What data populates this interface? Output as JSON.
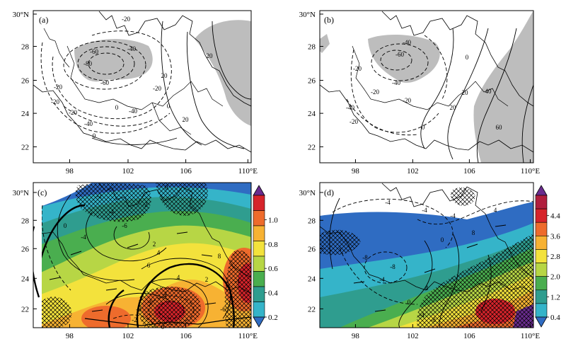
{
  "panels": [
    {
      "id": "a",
      "label": "(a)",
      "x_ticks": [
        "98",
        "102",
        "106",
        "110°E"
      ],
      "y_ticks": [
        "30°N",
        "28",
        "26",
        "24",
        "22"
      ],
      "contour_labels": [
        "-20",
        "-40",
        "-60",
        "-60",
        "-80",
        "-20",
        "0",
        "-20",
        "-20",
        "-40",
        "-40",
        "-20",
        "0",
        "20",
        "20",
        "20",
        "0"
      ]
    },
    {
      "id": "b",
      "label": "(b)",
      "x_ticks": [
        "98",
        "102",
        "106",
        "110°E"
      ],
      "y_ticks": [
        "30°N",
        "28",
        "26",
        "24",
        "22"
      ],
      "contour_labels": [
        "-40",
        "-60",
        "-20",
        "-40",
        "-20",
        "-20",
        "-40",
        "-20",
        "0",
        "0",
        "20",
        "20",
        "40",
        "60"
      ]
    },
    {
      "id": "c",
      "label": "(c)",
      "x_ticks": [
        "98",
        "102",
        "106",
        "110°E"
      ],
      "y_ticks": [
        "30°N",
        "28",
        "26",
        "24",
        "22"
      ],
      "contour_labels": [
        "0",
        "-2",
        "-4",
        "-6",
        "-4",
        "-2",
        "0",
        "2",
        "4",
        "6",
        "8",
        "-4",
        "-6",
        "-8",
        "-6",
        "-4",
        "4",
        "2",
        "0",
        "-2"
      ]
    },
    {
      "id": "d",
      "label": "(d)",
      "x_ticks": [
        "98",
        "102",
        "106",
        "110°E"
      ],
      "y_ticks": [
        "30°N",
        "28",
        "26",
        "24",
        "22"
      ],
      "contour_labels": [
        "-4",
        "-8",
        "-4",
        "-8",
        "-4",
        "0",
        "-4",
        "4",
        "0",
        "-4",
        "-8",
        "8",
        "4"
      ]
    }
  ],
  "colorbars": [
    {
      "id": "c",
      "labels": [
        "1.0",
        "0.8",
        "0.6",
        "0.4",
        "0.2"
      ],
      "colors": [
        "#6a2c8e",
        "#d6242b",
        "#ee6b2c",
        "#f7b233",
        "#f3e23c",
        "#b7d645",
        "#4aae4f",
        "#2f9d8f",
        "#35b4c9",
        "#2f6cc2"
      ]
    },
    {
      "id": "d",
      "labels": [
        "4.4",
        "3.6",
        "2.8",
        "2.0",
        "1.2",
        "0.4"
      ],
      "colors": [
        "#6a2c8e",
        "#b01f3e",
        "#d6242b",
        "#ee6b2c",
        "#f7b233",
        "#f3e23c",
        "#b7d645",
        "#4aae4f",
        "#2f9d8f",
        "#35b4c9",
        "#2f6cc2"
      ]
    }
  ]
}
